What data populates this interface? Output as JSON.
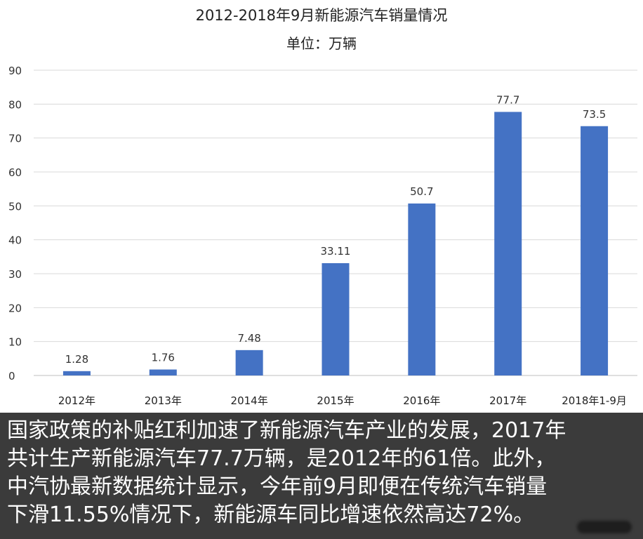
{
  "chart_data": {
    "type": "bar",
    "title": "2012-2018年9月新能源汽车销量情况",
    "subtitle": "单位：万辆",
    "categories": [
      "2012年",
      "2013年",
      "2014年",
      "2015年",
      "2016年",
      "2017年",
      "2018年1-9月"
    ],
    "values": [
      1.28,
      1.76,
      7.48,
      33.11,
      50.7,
      77.7,
      73.5
    ],
    "value_labels": [
      "1.28",
      "1.76",
      "7.48",
      "33.11",
      "50.7",
      "77.7",
      "73.5"
    ],
    "ylim": [
      0,
      90
    ],
    "yticks": [
      0,
      10,
      20,
      30,
      40,
      50,
      60,
      70,
      80,
      90
    ],
    "grid": true,
    "bar_color": "#4472C4"
  },
  "caption": {
    "lines": [
      "国家政策的补贴红利加速了新能源汽车产业的发展，2017年",
      "共计生产新能源汽车77.7万辆，是2012年的61倍。此外，",
      "中汽协最新数据统计显示，今年前9月即便在传统汽车销量",
      "下滑11.55%情况下，新能源车同比增速依然高达72%。"
    ],
    "background": "#3b3b3b",
    "text_color": "#ffffff"
  }
}
